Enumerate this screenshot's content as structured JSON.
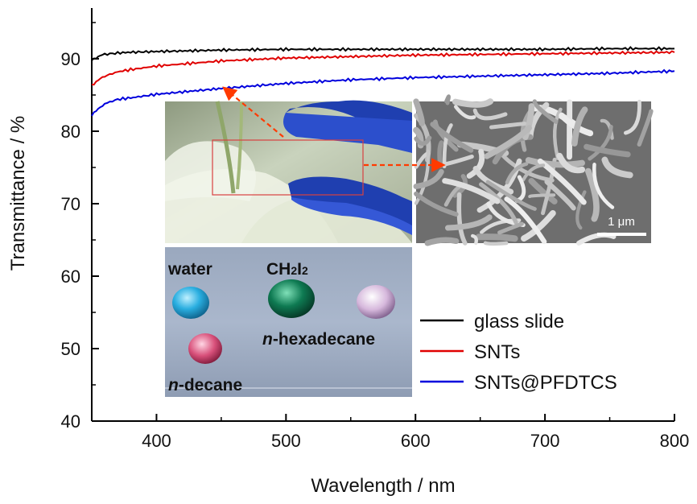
{
  "chart_data": {
    "type": "line",
    "xlabel": "Wavelength / nm",
    "ylabel": "Transmittance / %",
    "xlim": [
      350,
      800
    ],
    "ylim": [
      40,
      97
    ],
    "x_ticks": [
      400,
      500,
      600,
      700,
      800
    ],
    "y_ticks": [
      40,
      50,
      60,
      70,
      80,
      90
    ],
    "grid": false,
    "legend_position": "bottom-right",
    "series": [
      {
        "name": "glass slide",
        "color": "#000000",
        "x": [
          350,
          355,
          360,
          370,
          380,
          400,
          450,
          500,
          550,
          600,
          650,
          700,
          750,
          800
        ],
        "y": [
          89.9,
          90.3,
          90.6,
          90.8,
          90.9,
          91.0,
          91.2,
          91.3,
          91.3,
          91.3,
          91.3,
          91.3,
          91.4,
          91.4
        ]
      },
      {
        "name": "SNTs",
        "color": "#e00000",
        "x": [
          350,
          355,
          360,
          370,
          380,
          400,
          450,
          500,
          550,
          600,
          650,
          700,
          750,
          800
        ],
        "y": [
          86.4,
          87.0,
          87.6,
          88.2,
          88.5,
          89.0,
          89.7,
          90.1,
          90.3,
          90.5,
          90.6,
          90.7,
          90.8,
          90.9
        ]
      },
      {
        "name": "SNTs@PFDTCS",
        "color": "#0000dd",
        "x": [
          350,
          355,
          360,
          370,
          380,
          400,
          450,
          500,
          550,
          600,
          650,
          700,
          750,
          800
        ],
        "y": [
          82.3,
          83.0,
          83.8,
          84.4,
          84.6,
          85.1,
          85.9,
          86.6,
          87.1,
          87.4,
          87.6,
          87.8,
          88.0,
          88.3
        ]
      }
    ]
  },
  "insets": {
    "drop_labels": {
      "water": "water",
      "ch2i2_main": "CH",
      "ch2i2_sub1": "2",
      "ch2i2_mid": "I",
      "ch2i2_sub2": "2",
      "hexadecane_prefix": "n",
      "hexadecane_rest": "-hexadecane",
      "decane_prefix": "n",
      "decane_rest": "-decane"
    },
    "sem_scale_bar": "1 μm",
    "drop_colors": {
      "water": "#29aee0",
      "ch2i2": "#0e7a52",
      "hexadecane": "#d6b8dc",
      "decane": "#d8507a"
    }
  }
}
